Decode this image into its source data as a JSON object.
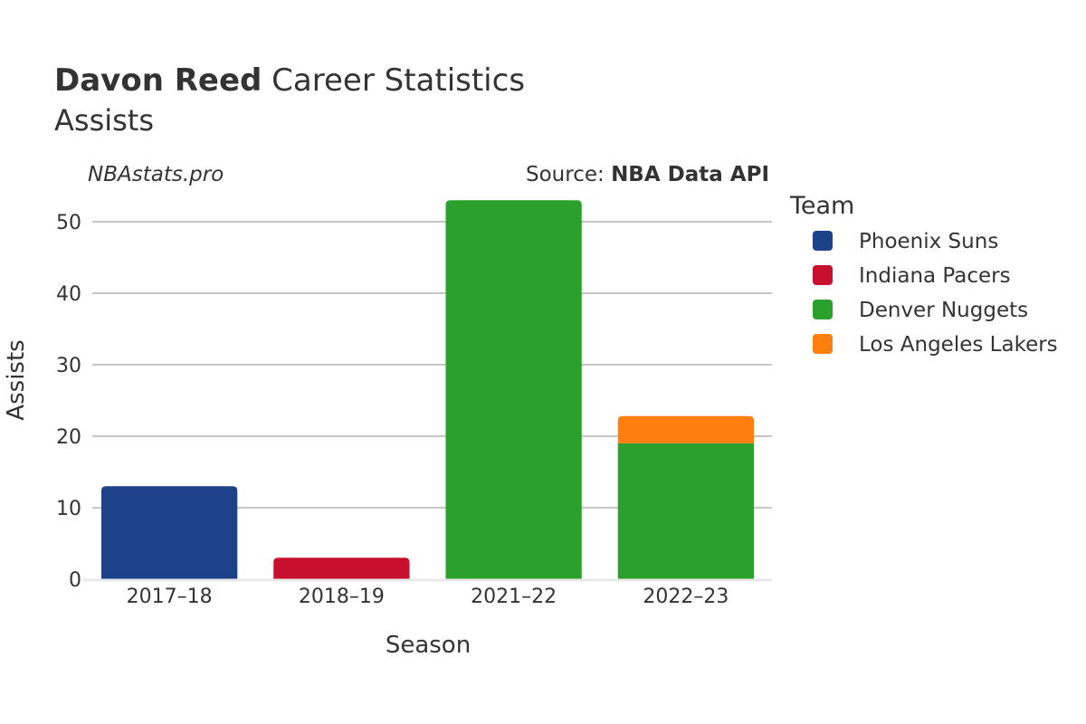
{
  "header": {
    "player_name": "Davon Reed",
    "title_rest": " Career Statistics",
    "subtitle": "Assists",
    "watermark": "NBAstats.pro",
    "source_prefix": "Source: ",
    "source_name": "NBA Data API"
  },
  "legend": {
    "title": "Team",
    "items": [
      {
        "label": "Phoenix Suns",
        "color": "#1d428a"
      },
      {
        "label": "Indiana Pacers",
        "color": "#c8102e"
      },
      {
        "label": "Denver Nuggets",
        "color": "#2ca02c"
      },
      {
        "label": "Los Angeles Lakers",
        "color": "#ff7f0e"
      }
    ]
  },
  "chart_data": {
    "type": "bar",
    "stacked": true,
    "categories": [
      "2017–18",
      "2018–19",
      "2021–22",
      "2022–23"
    ],
    "series": [
      {
        "name": "Phoenix Suns",
        "color": "#1d428a",
        "values": [
          13,
          0,
          0,
          0
        ]
      },
      {
        "name": "Indiana Pacers",
        "color": "#c8102e",
        "values": [
          0,
          3,
          0,
          0
        ]
      },
      {
        "name": "Denver Nuggets",
        "color": "#2ca02c",
        "values": [
          0,
          0,
          53,
          19
        ]
      },
      {
        "name": "Los Angeles Lakers",
        "color": "#ff7f0e",
        "values": [
          0,
          0,
          0,
          4
        ]
      }
    ],
    "xlabel": "Season",
    "ylabel": "Assists",
    "ylim": [
      0,
      55
    ],
    "yticks": [
      0,
      10,
      20,
      30,
      40,
      50
    ],
    "grid": true,
    "legend_position": "right"
  }
}
